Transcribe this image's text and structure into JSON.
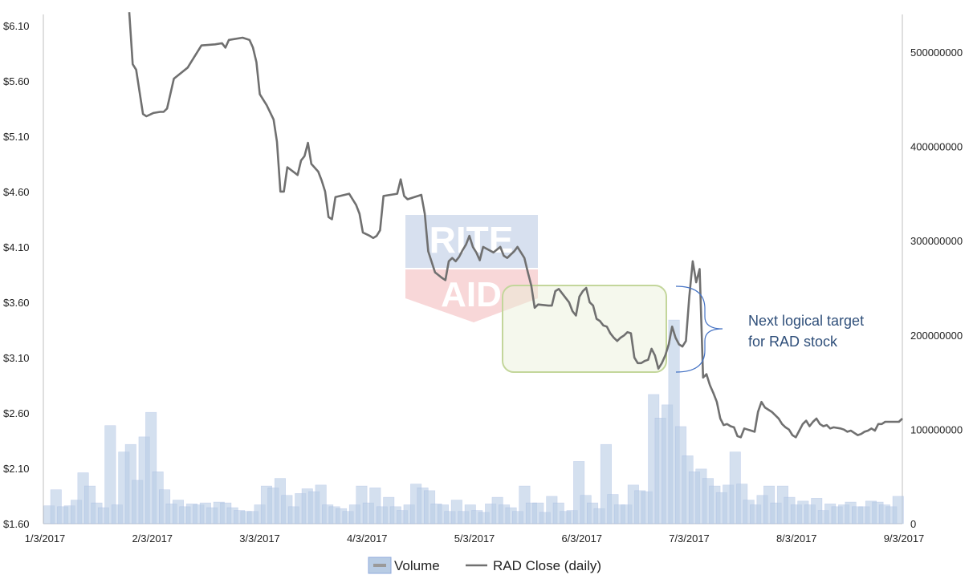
{
  "chart_data": {
    "type": "bar+line",
    "x_tick_labels": [
      "1/3/2017",
      "2/3/2017",
      "3/3/2017",
      "4/3/2017",
      "5/3/2017",
      "6/3/2017",
      "7/3/2017",
      "8/3/2017",
      "9/3/2017"
    ],
    "y_left_tick_labels": [
      "$1.60",
      "$2.10",
      "$2.60",
      "$3.10",
      "$3.60",
      "$4.10",
      "$4.60",
      "$5.10",
      "$5.60",
      "$6.10"
    ],
    "y_right_tick_labels": [
      "0",
      "100000000",
      "200000000",
      "300000000",
      "400000000",
      "500000000"
    ],
    "y_left_range": [
      1.6,
      6.2
    ],
    "y_right_range": [
      0,
      540000000
    ],
    "x_range_days": [
      0,
      250
    ],
    "legend": [
      {
        "label": "Volume",
        "kind": "bar"
      },
      {
        "label": "RAD Close (daily)",
        "kind": "line"
      }
    ],
    "annotation": {
      "lines": [
        "Next logical target",
        "for RAD stock"
      ]
    },
    "watermark_logo": [
      "RITE",
      "AID"
    ],
    "colors": {
      "line": "#707070",
      "bar_fill": "#b8cce4",
      "bar_edge": "#8faadc",
      "box_fill": "#e8f0d8",
      "box_stroke": "#c3d69b",
      "annot_text": "#2f4f7a",
      "brace": "#4472c4",
      "logo_blue": "#2a5aa8",
      "logo_red": "#d9262c"
    },
    "series": [
      {
        "name": "RAD Close (daily)",
        "points": [
          [
            25,
            6.22
          ],
          [
            26,
            5.75
          ],
          [
            27,
            5.7
          ],
          [
            29,
            5.3
          ],
          [
            30,
            5.28
          ],
          [
            32,
            5.31
          ],
          [
            34,
            5.32
          ],
          [
            35,
            5.32
          ],
          [
            36,
            5.35
          ],
          [
            38,
            5.62
          ],
          [
            42,
            5.72
          ],
          [
            43,
            5.77
          ],
          [
            46,
            5.92
          ],
          [
            50,
            5.93
          ],
          [
            52,
            5.94
          ],
          [
            53,
            5.9
          ],
          [
            54,
            5.97
          ],
          [
            58,
            5.99
          ],
          [
            60,
            5.97
          ],
          [
            61,
            5.9
          ],
          [
            62,
            5.77
          ],
          [
            63,
            5.48
          ],
          [
            65,
            5.38
          ],
          [
            67,
            5.25
          ],
          [
            68,
            5.05
          ],
          [
            69,
            4.6
          ],
          [
            70,
            4.6
          ],
          [
            71,
            4.82
          ],
          [
            74,
            4.75
          ],
          [
            75,
            4.88
          ],
          [
            76,
            4.92
          ],
          [
            77,
            5.04
          ],
          [
            78,
            4.85
          ],
          [
            80,
            4.78
          ],
          [
            81,
            4.7
          ],
          [
            82,
            4.6
          ],
          [
            83,
            4.37
          ],
          [
            84,
            4.35
          ],
          [
            85,
            4.55
          ],
          [
            89,
            4.58
          ],
          [
            91,
            4.48
          ],
          [
            92,
            4.4
          ],
          [
            93,
            4.23
          ],
          [
            95,
            4.2
          ],
          [
            96,
            4.18
          ],
          [
            97,
            4.2
          ],
          [
            98,
            4.25
          ],
          [
            99,
            4.56
          ],
          [
            103,
            4.58
          ],
          [
            104,
            4.71
          ],
          [
            105,
            4.56
          ],
          [
            106,
            4.53
          ],
          [
            110,
            4.57
          ],
          [
            111,
            4.4
          ],
          [
            112,
            4.06
          ],
          [
            114,
            3.87
          ],
          [
            116,
            3.82
          ],
          [
            117,
            3.8
          ],
          [
            118,
            3.97
          ],
          [
            119,
            4.0
          ],
          [
            120,
            3.97
          ],
          [
            121,
            4.01
          ],
          [
            122,
            4.07
          ],
          [
            123,
            4.12
          ],
          [
            124,
            4.2
          ],
          [
            125,
            4.1
          ],
          [
            126,
            4.05
          ],
          [
            127,
            3.98
          ],
          [
            128,
            4.1
          ],
          [
            131,
            4.05
          ],
          [
            133,
            4.1
          ],
          [
            134,
            4.02
          ],
          [
            135,
            4.0
          ],
          [
            137,
            4.06
          ],
          [
            138,
            4.1
          ],
          [
            139,
            4.05
          ],
          [
            140,
            4.0
          ],
          [
            141,
            3.87
          ],
          [
            142,
            3.75
          ],
          [
            143,
            3.55
          ],
          [
            144,
            3.58
          ],
          [
            147,
            3.57
          ],
          [
            148,
            3.57
          ],
          [
            149,
            3.7
          ],
          [
            150,
            3.72
          ],
          [
            151,
            3.68
          ],
          [
            153,
            3.6
          ],
          [
            154,
            3.52
          ],
          [
            155,
            3.48
          ],
          [
            156,
            3.65
          ],
          [
            157,
            3.7
          ],
          [
            158,
            3.73
          ],
          [
            159,
            3.6
          ],
          [
            160,
            3.57
          ],
          [
            161,
            3.45
          ],
          [
            162,
            3.43
          ],
          [
            163,
            3.39
          ],
          [
            164,
            3.38
          ],
          [
            165,
            3.32
          ],
          [
            166,
            3.28
          ],
          [
            167,
            3.25
          ],
          [
            168,
            3.28
          ],
          [
            169,
            3.3
          ],
          [
            170,
            3.33
          ],
          [
            171,
            3.32
          ],
          [
            172,
            3.1
          ],
          [
            173,
            3.05
          ],
          [
            174,
            3.05
          ],
          [
            175,
            3.07
          ],
          [
            176,
            3.08
          ],
          [
            177,
            3.18
          ],
          [
            178,
            3.12
          ],
          [
            179,
            3.0
          ],
          [
            180,
            3.05
          ],
          [
            181,
            3.12
          ],
          [
            182,
            3.22
          ],
          [
            183,
            3.38
          ],
          [
            184,
            3.28
          ],
          [
            185,
            3.22
          ],
          [
            186,
            3.2
          ],
          [
            187,
            3.25
          ],
          [
            188,
            3.65
          ],
          [
            189,
            3.97
          ],
          [
            190,
            3.78
          ],
          [
            191,
            3.9
          ],
          [
            192,
            2.92
          ],
          [
            193,
            2.95
          ],
          [
            194,
            2.85
          ],
          [
            195,
            2.78
          ],
          [
            196,
            2.7
          ],
          [
            197,
            2.55
          ],
          [
            198,
            2.49
          ],
          [
            199,
            2.5
          ],
          [
            200,
            2.48
          ],
          [
            201,
            2.47
          ],
          [
            202,
            2.39
          ],
          [
            203,
            2.38
          ],
          [
            204,
            2.46
          ],
          [
            205,
            2.45
          ],
          [
            206,
            2.44
          ],
          [
            207,
            2.43
          ],
          [
            208,
            2.61
          ],
          [
            209,
            2.7
          ],
          [
            210,
            2.65
          ],
          [
            212,
            2.61
          ],
          [
            214,
            2.55
          ],
          [
            215,
            2.5
          ],
          [
            216,
            2.47
          ],
          [
            217,
            2.45
          ],
          [
            218,
            2.4
          ],
          [
            219,
            2.38
          ],
          [
            220,
            2.44
          ],
          [
            221,
            2.5
          ],
          [
            222,
            2.53
          ],
          [
            223,
            2.48
          ],
          [
            224,
            2.52
          ],
          [
            225,
            2.55
          ],
          [
            226,
            2.5
          ],
          [
            227,
            2.48
          ],
          [
            228,
            2.49
          ],
          [
            229,
            2.46
          ],
          [
            230,
            2.47
          ],
          [
            232,
            2.46
          ],
          [
            233,
            2.45
          ],
          [
            234,
            2.43
          ],
          [
            235,
            2.44
          ],
          [
            236,
            2.42
          ],
          [
            237,
            2.4
          ],
          [
            238,
            2.41
          ],
          [
            239,
            2.43
          ],
          [
            240,
            2.44
          ],
          [
            241,
            2.46
          ],
          [
            242,
            2.44
          ],
          [
            243,
            2.5
          ],
          [
            244,
            2.5
          ],
          [
            245,
            2.52
          ],
          [
            246,
            2.52
          ],
          [
            247,
            2.52
          ],
          [
            248,
            2.52
          ],
          [
            249,
            2.52
          ],
          [
            250,
            2.55
          ]
        ]
      },
      {
        "name": "Volume",
        "points": [
          [
            0,
            19000000
          ],
          [
            1,
            36000000
          ],
          [
            2,
            18000000
          ],
          [
            3,
            19000000
          ],
          [
            4,
            25000000
          ],
          [
            5,
            54000000
          ],
          [
            6,
            40000000
          ],
          [
            7,
            22000000
          ],
          [
            8,
            17000000
          ],
          [
            9,
            104000000
          ],
          [
            10,
            20000000
          ],
          [
            11,
            76000000
          ],
          [
            12,
            84000000
          ],
          [
            13,
            46000000
          ],
          [
            14,
            92000000
          ],
          [
            15,
            118000000
          ],
          [
            16,
            55000000
          ],
          [
            17,
            36000000
          ],
          [
            18,
            21000000
          ],
          [
            19,
            25000000
          ],
          [
            20,
            18000000
          ],
          [
            21,
            21000000
          ],
          [
            22,
            20000000
          ],
          [
            23,
            22000000
          ],
          [
            24,
            17000000
          ],
          [
            25,
            23000000
          ],
          [
            26,
            22000000
          ],
          [
            27,
            17000000
          ],
          [
            28,
            14000000
          ],
          [
            29,
            13000000
          ],
          [
            30,
            13000000
          ],
          [
            31,
            20000000
          ],
          [
            32,
            40000000
          ],
          [
            33,
            38000000
          ],
          [
            34,
            48000000
          ],
          [
            35,
            30000000
          ],
          [
            36,
            18000000
          ],
          [
            37,
            32000000
          ],
          [
            38,
            37000000
          ],
          [
            39,
            34000000
          ],
          [
            40,
            41000000
          ],
          [
            41,
            20000000
          ],
          [
            42,
            18000000
          ],
          [
            43,
            16000000
          ],
          [
            44,
            13000000
          ],
          [
            45,
            20000000
          ],
          [
            46,
            40000000
          ],
          [
            47,
            22000000
          ],
          [
            48,
            38000000
          ],
          [
            49,
            18000000
          ],
          [
            50,
            28000000
          ],
          [
            51,
            18000000
          ],
          [
            52,
            14000000
          ],
          [
            53,
            20000000
          ],
          [
            54,
            42000000
          ],
          [
            55,
            38000000
          ],
          [
            56,
            35000000
          ],
          [
            57,
            21000000
          ],
          [
            58,
            20000000
          ],
          [
            59,
            13000000
          ],
          [
            60,
            25000000
          ],
          [
            61,
            13000000
          ],
          [
            62,
            20000000
          ],
          [
            63,
            14000000
          ],
          [
            64,
            12000000
          ],
          [
            65,
            21000000
          ],
          [
            66,
            28000000
          ],
          [
            67,
            20000000
          ],
          [
            68,
            17000000
          ],
          [
            69,
            13000000
          ],
          [
            70,
            40000000
          ],
          [
            71,
            22000000
          ],
          [
            72,
            22000000
          ],
          [
            73,
            12000000
          ],
          [
            74,
            29000000
          ],
          [
            75,
            22000000
          ],
          [
            76,
            13000000
          ],
          [
            77,
            14000000
          ],
          [
            78,
            66000000
          ],
          [
            79,
            30000000
          ],
          [
            80,
            22000000
          ],
          [
            81,
            16000000
          ],
          [
            82,
            84000000
          ],
          [
            83,
            31000000
          ],
          [
            84,
            20000000
          ],
          [
            85,
            20000000
          ],
          [
            86,
            41000000
          ],
          [
            87,
            35000000
          ],
          [
            88,
            34000000
          ],
          [
            89,
            137000000
          ],
          [
            90,
            112000000
          ],
          [
            91,
            126000000
          ],
          [
            92,
            216000000
          ],
          [
            93,
            103000000
          ],
          [
            94,
            72000000
          ],
          [
            95,
            55000000
          ],
          [
            96,
            58000000
          ],
          [
            97,
            48000000
          ],
          [
            98,
            40000000
          ],
          [
            99,
            33000000
          ],
          [
            100,
            41000000
          ],
          [
            101,
            76000000
          ],
          [
            102,
            42000000
          ],
          [
            103,
            25000000
          ],
          [
            104,
            20000000
          ],
          [
            105,
            30000000
          ],
          [
            106,
            40000000
          ],
          [
            107,
            22000000
          ],
          [
            108,
            40000000
          ],
          [
            109,
            28000000
          ],
          [
            110,
            20000000
          ],
          [
            111,
            24000000
          ],
          [
            112,
            20000000
          ],
          [
            113,
            27000000
          ],
          [
            114,
            14000000
          ],
          [
            115,
            21000000
          ],
          [
            116,
            18000000
          ],
          [
            117,
            20000000
          ],
          [
            118,
            23000000
          ],
          [
            119,
            18000000
          ],
          [
            120,
            18000000
          ],
          [
            121,
            24000000
          ],
          [
            122,
            23000000
          ],
          [
            123,
            20000000
          ],
          [
            124,
            18000000
          ],
          [
            125,
            29000000
          ]
        ]
      }
    ]
  }
}
